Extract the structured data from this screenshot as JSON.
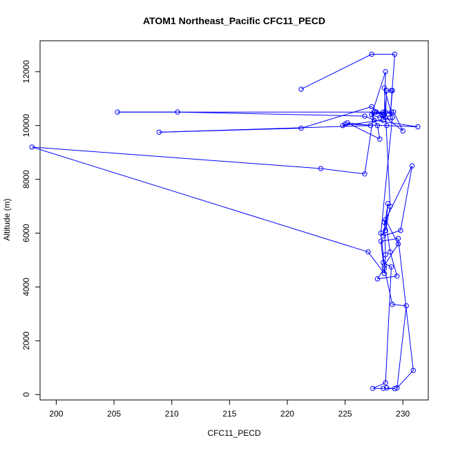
{
  "chart_data": {
    "type": "line",
    "title": "ATOM1 Northeast_Pacific CFC11_PECD",
    "xlabel": "CFC11_PECD",
    "ylabel": "Altitude (m)",
    "xlim": [
      198.6,
      232.2
    ],
    "ylim": [
      -200,
      13150
    ],
    "xticks": [
      200,
      205,
      210,
      215,
      220,
      225,
      230
    ],
    "yticks": [
      0,
      2000,
      4000,
      6000,
      8000,
      10000,
      12000
    ],
    "grid": false,
    "line_color": "#0000ff",
    "markers": "open-circle",
    "series": [
      {
        "x": [
          228.6,
          229.3,
          228.3,
          227.4,
          228.5,
          229.0,
          228.3,
          228.1,
          229.6,
          230.9,
          229.5,
          230.3,
          229.1,
          228.4,
          227.8,
          229.5,
          228.9,
          228.5,
          229.6,
          228.4,
          228.1,
          229.1,
          228.4,
          228.9,
          228.5,
          228.7,
          228.3,
          229.8,
          230.8,
          228.4,
          228.5,
          228.4,
          227.0,
          197.9,
          222.9,
          226.7,
          227.5,
          228.2,
          229.2,
          230.0,
          227.3,
          221.2,
          208.9,
          227.2,
          225.2,
          228.0,
          227.8,
          227.3,
          228.5,
          228.3,
          224.8,
          225.0,
          228.6,
          231.3,
          227.5,
          226.7,
          210.5,
          205.3,
          228.3,
          229.0,
          227.7,
          228.4,
          228.5,
          227.3,
          228.0,
          228.5,
          228.6,
          229.0,
          229.1,
          228.9,
          229.3,
          227.3,
          221.2
        ],
        "y": [
          250,
          220,
          230,
          230,
          440,
          4750,
          4900,
          5700,
          5800,
          900,
          250,
          3300,
          3350,
          4700,
          4300,
          4400,
          5300,
          6500,
          5600,
          4800,
          6000,
          10300,
          11400,
          7000,
          6100,
          7100,
          5900,
          6100,
          8500,
          6400,
          5200,
          4500,
          5300,
          9200,
          8400,
          8200,
          10500,
          10400,
          10500,
          9800,
          10700,
          9900,
          9750,
          10000,
          10100,
          9500,
          10000,
          10400,
          10500,
          10200,
          10000,
          10050,
          10000,
          9950,
          10200,
          10350,
          10500,
          10500,
          10500,
          10500,
          10500,
          10400,
          12000,
          10400,
          10300,
          10300,
          11300,
          11300,
          11300,
          10300,
          12650,
          12650,
          11350
        ]
      }
    ]
  }
}
